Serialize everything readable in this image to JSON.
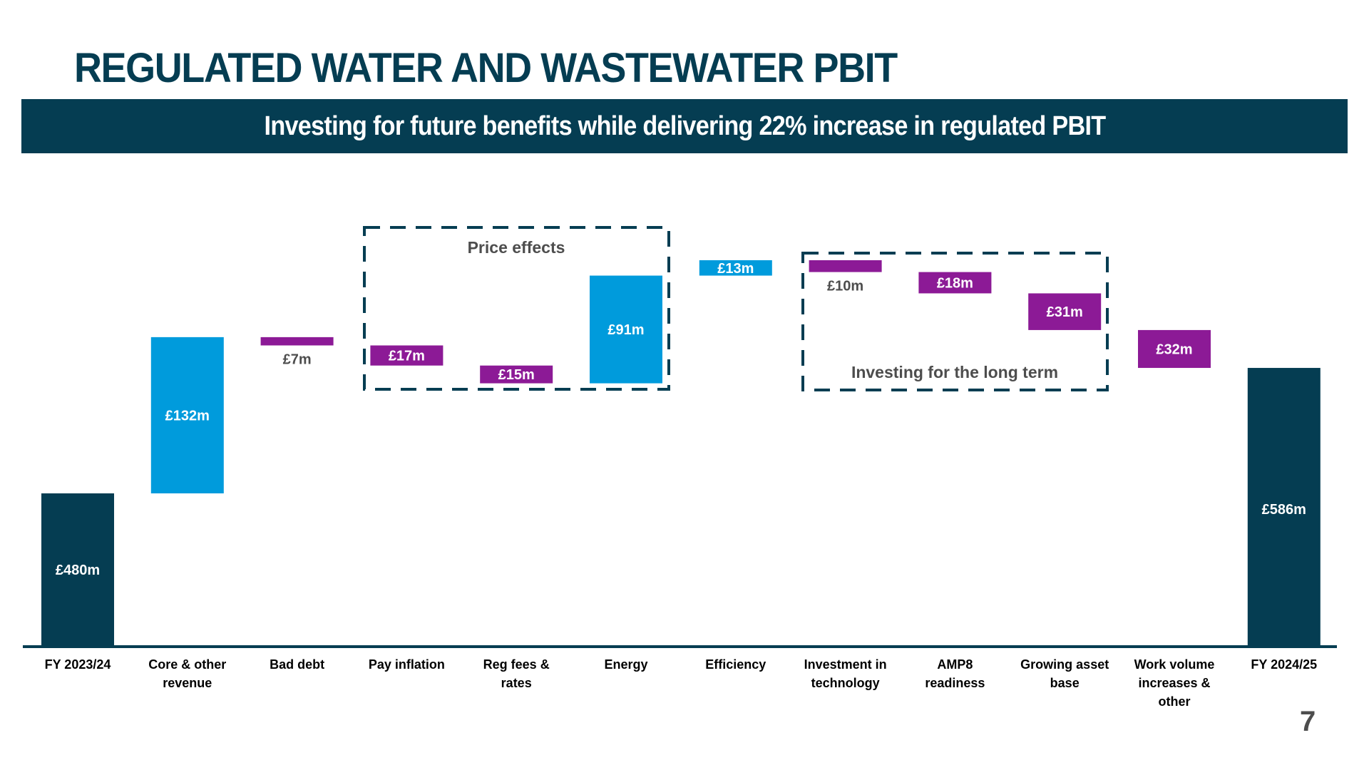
{
  "slide": {
    "title": "REGULATED WATER AND WASTEWATER PBIT",
    "banner": "Investing for future benefits while delivering 22% increase in regulated PBIT",
    "page_number": "7"
  },
  "colors": {
    "total": "#053d52",
    "increase": "#009bdc",
    "decrease": "#8c1a96",
    "frame": "#053d52",
    "annotation_text": "#4d4d4d"
  },
  "chart_data": {
    "type": "bar",
    "subtype": "waterfall",
    "title": "REGULATED WATER AND WASTEWATER PBIT",
    "xlabel": "",
    "ylabel": "",
    "units": "£m",
    "axis_break": true,
    "categories": [
      "FY 2023/24",
      "Core & other revenue",
      "Bad debt",
      "Pay inflation",
      "Reg fees & rates",
      "Energy",
      "Efficiency",
      "Investment in technology",
      "AMP8 readiness",
      "Growing asset base",
      "Work volume increases & other",
      "FY 2024/25"
    ],
    "category_lines": [
      [
        "FY 2023/24"
      ],
      [
        "Core & other",
        "revenue"
      ],
      [
        "Bad debt"
      ],
      [
        "Pay inflation"
      ],
      [
        "Reg fees &",
        "rates"
      ],
      [
        "Energy"
      ],
      [
        "Efficiency"
      ],
      [
        "Investment in",
        "technology"
      ],
      [
        "AMP8",
        "readiness"
      ],
      [
        "Growing asset",
        "base"
      ],
      [
        "Work volume",
        "increases &",
        "other"
      ],
      [
        "FY 2024/25"
      ]
    ],
    "values": [
      480,
      132,
      -7,
      -17,
      -15,
      91,
      13,
      -10,
      -18,
      -31,
      -32,
      586
    ],
    "kinds": [
      "total",
      "increase",
      "decrease",
      "decrease",
      "decrease",
      "increase",
      "increase",
      "decrease",
      "decrease",
      "decrease",
      "decrease",
      "total"
    ],
    "labels": [
      "£480m",
      "£132m",
      "£7m",
      "£17m",
      "£15m",
      "£91m",
      "£13m",
      "£10m",
      "£18m",
      "£31m",
      "£32m",
      "£586m"
    ],
    "annotations": [
      {
        "text": "Price effects",
        "covers": [
          "Pay inflation",
          "Reg fees & rates",
          "Energy"
        ]
      },
      {
        "text": "Investing for the long term",
        "covers": [
          "Investment in technology",
          "AMP8 readiness",
          "Growing asset base"
        ]
      }
    ]
  }
}
